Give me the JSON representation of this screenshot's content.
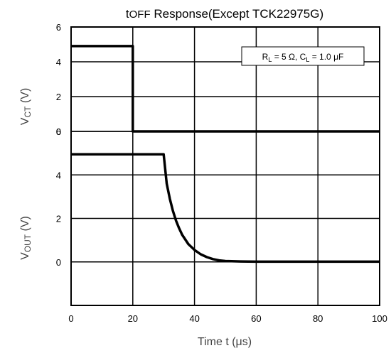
{
  "chart_data": {
    "type": "line",
    "title": "tₒₓₓ Response(Except TCK22975G)",
    "title_parts": {
      "t": "t",
      "off": "OFF",
      "rest": " Response(Except TCK22975G)"
    },
    "xlabel": "Time  t (μs)",
    "xlabel_parts": {
      "main": "Time  t (",
      "mu": "μ",
      "unit": "s)"
    },
    "xlim": [
      0,
      100
    ],
    "x_ticks": [
      "0",
      "20",
      "40",
      "60",
      "80",
      "100"
    ],
    "grid": true,
    "annotation": {
      "text": "Rₗ = 5 Ω, Cₗ = 1.0 μF",
      "parts": {
        "r": "R",
        "rsub": "L",
        "rval": " = 5 Ω, C",
        "csub": "L",
        "cval": " = 1.0 μF"
      }
    },
    "panels": [
      {
        "ylabel": "VCT (V)",
        "ylabel_parts": {
          "v": "V",
          "sub": "CT",
          "unit": " (V)"
        },
        "ylim": [
          0,
          6
        ],
        "y_ticks": [
          "0",
          "2",
          "4",
          "6"
        ],
        "series": [
          {
            "color": "#000000",
            "x": [
              0,
              20,
              20,
              100
            ],
            "y": [
              4.9,
              4.9,
              0,
              0
            ]
          }
        ]
      },
      {
        "ylabel": "VOUT (V)",
        "ylabel_parts": {
          "v": "V",
          "sub": "OUT",
          "unit": " (V)"
        },
        "ylim": [
          -2,
          6
        ],
        "y_ticks": [
          "0",
          "2",
          "4",
          "6"
        ],
        "series": [
          {
            "color": "#000000",
            "x": [
              0,
              30,
              31,
              32,
              33,
              34,
              35,
              36,
              38,
              40,
              42,
              44,
              46,
              48,
              50,
              55,
              60,
              100
            ],
            "y": [
              4.95,
              4.95,
              3.6,
              2.9,
              2.35,
              1.9,
              1.55,
              1.25,
              0.82,
              0.55,
              0.35,
              0.22,
              0.13,
              0.07,
              0.04,
              0.02,
              0.01,
              0.01
            ]
          }
        ]
      }
    ]
  }
}
